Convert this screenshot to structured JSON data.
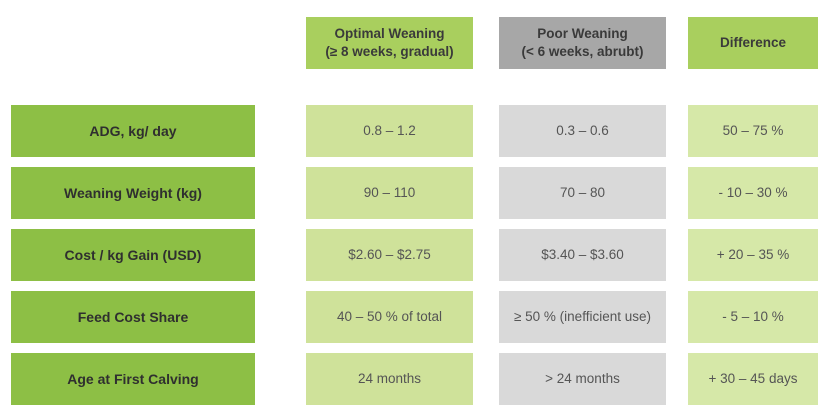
{
  "headers": {
    "optimal_line1": "Optimal Weaning",
    "optimal_line2": "(≥ 8 weeks, gradual)",
    "poor_line1": "Poor Weaning",
    "poor_line2": "(< 6 weeks, abrubt)",
    "difference": "Difference"
  },
  "rows": [
    {
      "label": "ADG, kg/ day",
      "optimal": "0.8 – 1.2",
      "poor": "0.3 – 0.6",
      "difference": "50 – 75 %"
    },
    {
      "label": "Weaning Weight (kg)",
      "optimal": "90 – 110",
      "poor": "70 – 80",
      "difference": "- 10 – 30 %"
    },
    {
      "label": "Cost / kg Gain (USD)",
      "optimal": "$2.60 – $2.75",
      "poor": "$3.40 – $3.60",
      "difference": "+ 20 – 35 %"
    },
    {
      "label": "Feed Cost Share",
      "optimal": "40 – 50 % of total",
      "poor": "≥ 50 % (inefficient use)",
      "difference": "- 5 – 10 %"
    },
    {
      "label": "Age at First Calving",
      "optimal": "24 months",
      "poor": "> 24 months",
      "difference": "+ 30 – 45 days"
    }
  ],
  "colors": {
    "header_green": "#a9cf5e",
    "header_gray": "#a7a7a7",
    "row_label_green": "#8dbf45",
    "optimal_cell": "#cfe29a",
    "poor_cell": "#d9d9d9",
    "difference_cell": "#d6e8a8"
  }
}
